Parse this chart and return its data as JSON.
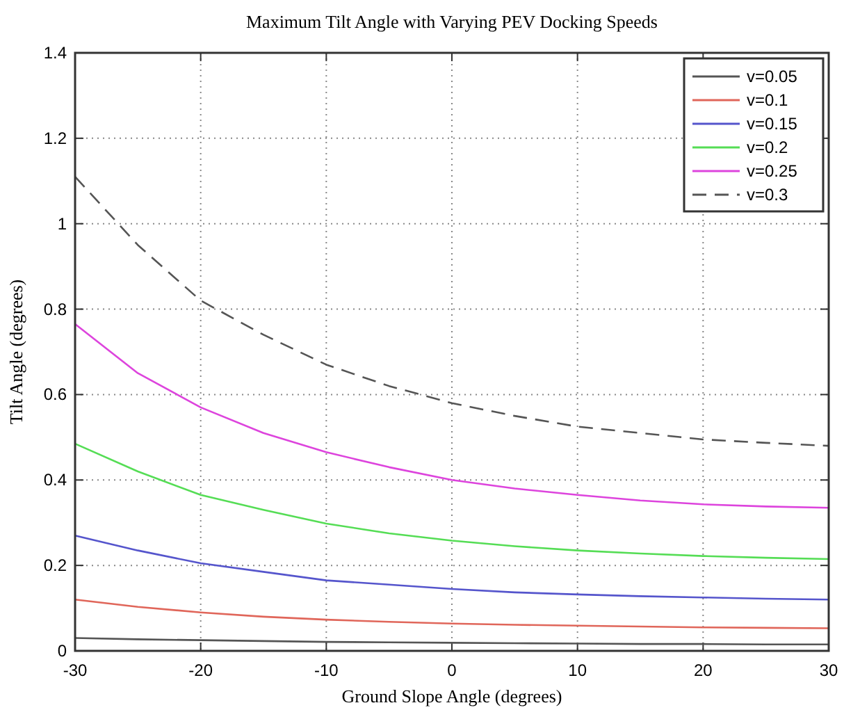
{
  "chart_data": {
    "type": "line",
    "title": "Maximum Tilt Angle with Varying PEV Docking Speeds",
    "xlabel": "Ground Slope Angle (degrees)",
    "ylabel": "Tilt Angle (degrees)",
    "x": [
      -30,
      -25,
      -20,
      -15,
      -10,
      -5,
      0,
      5,
      10,
      15,
      20,
      25,
      30
    ],
    "xlim": [
      -30,
      30
    ],
    "xticks": [
      -30,
      -20,
      -10,
      0,
      10,
      20,
      30
    ],
    "ylim": [
      0,
      1.4
    ],
    "yticks": [
      0,
      0.2,
      0.4,
      0.6,
      0.8,
      1,
      1.2,
      1.4
    ],
    "grid": true,
    "legend": "top right",
    "marker": "none",
    "series": [
      {
        "name": "v=0.05",
        "color": "#555555",
        "values": [
          0.03,
          0.027,
          0.025,
          0.023,
          0.021,
          0.02,
          0.019,
          0.018,
          0.017,
          0.016,
          0.016,
          0.015,
          0.015
        ]
      },
      {
        "name": "v=0.1",
        "color": "#e0665a",
        "values": [
          0.12,
          0.103,
          0.09,
          0.08,
          0.073,
          0.068,
          0.064,
          0.061,
          0.059,
          0.057,
          0.055,
          0.054,
          0.053
        ]
      },
      {
        "name": "v=0.15",
        "color": "#5555cc",
        "values": [
          0.27,
          0.235,
          0.205,
          0.185,
          0.165,
          0.155,
          0.145,
          0.137,
          0.132,
          0.128,
          0.125,
          0.122,
          0.12
        ]
      },
      {
        "name": "v=0.2",
        "color": "#55dd55",
        "values": [
          0.485,
          0.42,
          0.365,
          0.33,
          0.298,
          0.275,
          0.258,
          0.245,
          0.235,
          0.228,
          0.222,
          0.218,
          0.215
        ]
      },
      {
        "name": "v=0.25",
        "color": "#dd44dd",
        "values": [
          0.765,
          0.65,
          0.57,
          0.51,
          0.465,
          0.43,
          0.4,
          0.38,
          0.365,
          0.352,
          0.343,
          0.338,
          0.335
        ]
      },
      {
        "name": "v=0.3",
        "color": "#555555",
        "line_style": "dashed",
        "values": [
          1.11,
          0.95,
          0.82,
          0.74,
          0.67,
          0.62,
          0.58,
          0.55,
          0.525,
          0.51,
          0.495,
          0.487,
          0.48
        ]
      }
    ]
  }
}
